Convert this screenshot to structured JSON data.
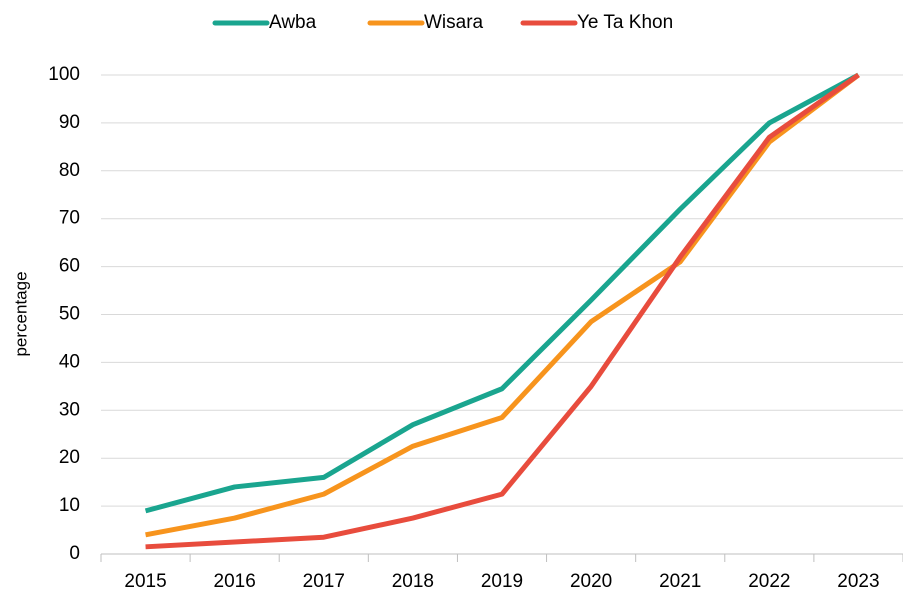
{
  "chart_data": {
    "type": "line",
    "y_label": "percentage",
    "categories": [
      "2015",
      "2016",
      "2017",
      "2018",
      "2019",
      "2020",
      "2021",
      "2022",
      "2023"
    ],
    "series": [
      {
        "name": "Awba",
        "color": "#1aa58f",
        "values": [
          9,
          14,
          16,
          27,
          34.5,
          53,
          72,
          90,
          100
        ]
      },
      {
        "name": "Wisara",
        "color": "#f7941d",
        "values": [
          4,
          7.5,
          12.5,
          22.5,
          28.5,
          48.5,
          61,
          86,
          100
        ]
      },
      {
        "name": "Ye Ta Khon",
        "color": "#e84c3d",
        "values": [
          1.5,
          2.5,
          3.5,
          7.5,
          12.5,
          35,
          62,
          87,
          100
        ]
      }
    ],
    "ylim": [
      0,
      100
    ],
    "yticks": [
      0,
      10,
      20,
      30,
      40,
      50,
      60,
      70,
      80,
      90,
      100
    ],
    "grid": true,
    "legend": "top"
  }
}
